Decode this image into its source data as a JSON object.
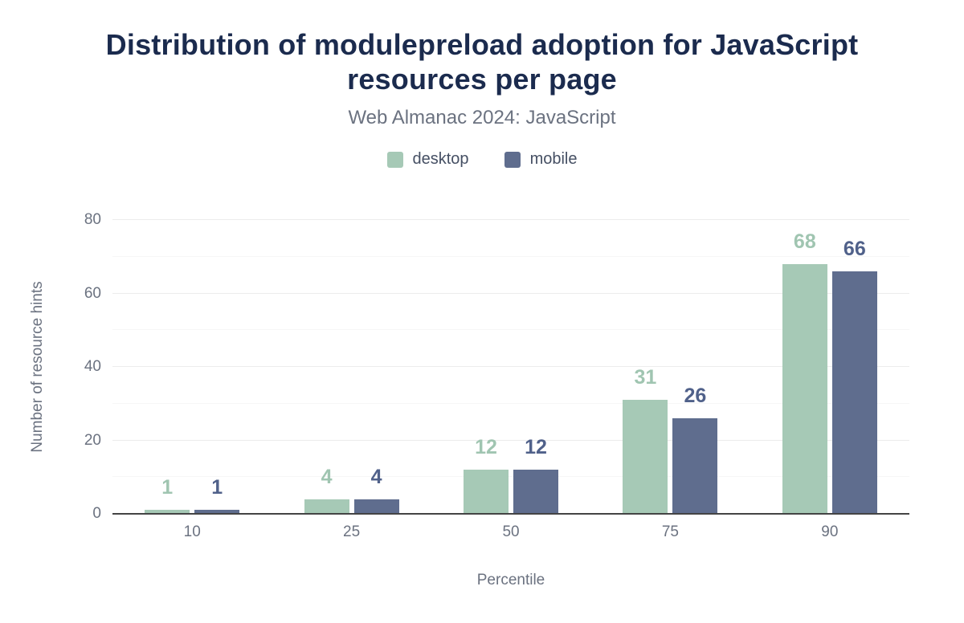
{
  "chart": {
    "title": "Distribution of modulepreload adoption for JavaScript resources per page",
    "subtitle": "Web Almanac 2024: JavaScript",
    "chart_data": {
      "type": "bar",
      "categories": [
        "10",
        "25",
        "50",
        "75",
        "90"
      ],
      "series": [
        {
          "name": "desktop",
          "color": "#a6c9b6",
          "label_color": "#a0c5b1",
          "values": [
            1,
            4,
            12,
            31,
            68
          ]
        },
        {
          "name": "mobile",
          "color": "#5f6d8e",
          "label_color": "#50618a",
          "values": [
            1,
            4,
            12,
            26,
            66
          ]
        }
      ],
      "xlabel": "Percentile",
      "ylabel": "Number of resource hints",
      "ylim": [
        0,
        80
      ],
      "yticks": [
        0,
        20,
        40,
        60,
        80
      ],
      "minor_ticks": [
        10,
        30,
        50,
        70
      ],
      "grid": "horizontal",
      "legend_position": "top"
    },
    "colors": {
      "title": "#1b2b4e",
      "subtitle": "#6b7280",
      "axis_text": "#6b7280",
      "baseline": "#444444",
      "grid_major": "#ececec",
      "grid_minor": "#f6f6f6",
      "background": "#ffffff"
    }
  }
}
